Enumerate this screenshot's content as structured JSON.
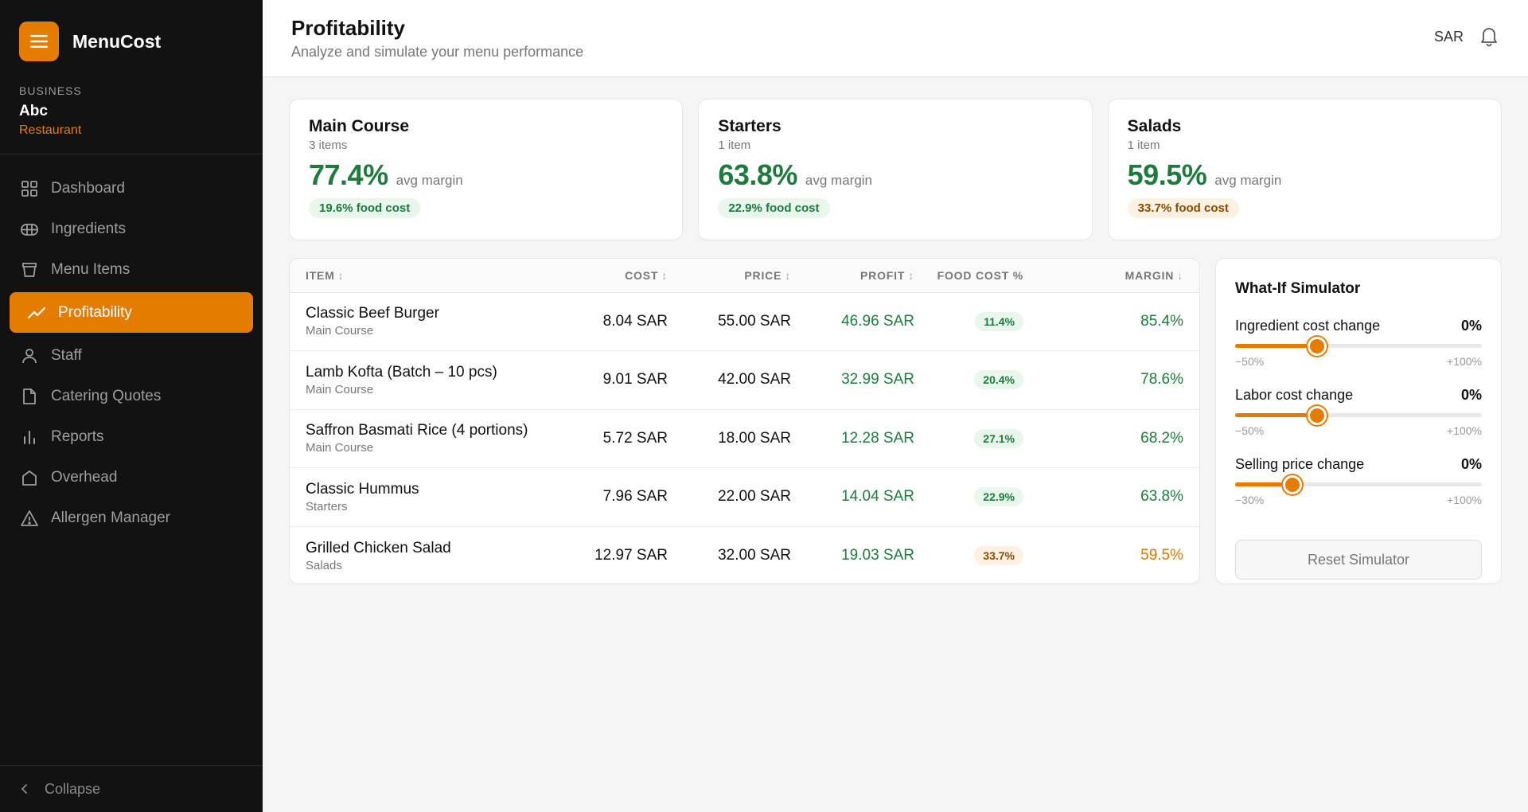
{
  "brand": {
    "name": "MenuCost",
    "icon": "hamburger-menu-icon"
  },
  "business": {
    "caption": "BUSINESS",
    "name": "Abc",
    "type": "Restaurant"
  },
  "nav": [
    {
      "label": "Dashboard",
      "icon": "dashboard-icon"
    },
    {
      "label": "Ingredients",
      "icon": "ingredients-icon"
    },
    {
      "label": "Menu Items",
      "icon": "menu-items-icon"
    },
    {
      "label": "Profitability",
      "icon": "trend-up-icon",
      "active": true
    },
    {
      "label": "Staff",
      "icon": "user-icon"
    },
    {
      "label": "Catering Quotes",
      "icon": "document-icon"
    },
    {
      "label": "Reports",
      "icon": "bar-chart-icon"
    },
    {
      "label": "Overhead",
      "icon": "home-icon"
    },
    {
      "label": "Allergen Manager",
      "icon": "warning-icon"
    }
  ],
  "collapse_label": "Collapse",
  "header": {
    "title": "Profitability",
    "subtitle": "Analyze and simulate your menu performance",
    "currency": "SAR"
  },
  "categories": [
    {
      "name": "Main Course",
      "count": "3 items",
      "margin": "77.4%",
      "margin_label": "avg margin",
      "food_cost": "19.6% food cost",
      "status": "green"
    },
    {
      "name": "Starters",
      "count": "1 item",
      "margin": "63.8%",
      "margin_label": "avg margin",
      "food_cost": "22.9% food cost",
      "status": "green"
    },
    {
      "name": "Salads",
      "count": "1 item",
      "margin": "59.5%",
      "margin_label": "avg margin",
      "food_cost": "33.7% food cost",
      "status": "amber"
    }
  ],
  "table": {
    "columns": {
      "item": "ITEM",
      "cost": "COST",
      "price": "PRICE",
      "profit": "PROFIT",
      "food_cost": "FOOD COST %",
      "margin": "MARGIN"
    },
    "sort_neutral": "↕",
    "sort_desc": "↓",
    "rows": [
      {
        "name": "Classic Beef Burger",
        "category": "Main Course",
        "cost": "8.04 SAR",
        "price": "55.00 SAR",
        "profit": "46.96 SAR",
        "food_cost": "11.4%",
        "margin": "85.4%",
        "status": "green"
      },
      {
        "name": "Lamb Kofta (Batch – 10 pcs)",
        "category": "Main Course",
        "cost": "9.01 SAR",
        "price": "42.00 SAR",
        "profit": "32.99 SAR",
        "food_cost": "20.4%",
        "margin": "78.6%",
        "status": "green"
      },
      {
        "name": "Saffron Basmati Rice (4 portions)",
        "category": "Main Course",
        "cost": "5.72 SAR",
        "price": "18.00 SAR",
        "profit": "12.28 SAR",
        "food_cost": "27.1%",
        "margin": "68.2%",
        "status": "green"
      },
      {
        "name": "Classic Hummus",
        "category": "Starters",
        "cost": "7.96 SAR",
        "price": "22.00 SAR",
        "profit": "14.04 SAR",
        "food_cost": "22.9%",
        "margin": "63.8%",
        "status": "green"
      },
      {
        "name": "Grilled Chicken Salad",
        "category": "Salads",
        "cost": "12.97 SAR",
        "price": "32.00 SAR",
        "profit": "19.03 SAR",
        "food_cost": "33.7%",
        "margin": "59.5%",
        "status": "amber"
      }
    ]
  },
  "simulator": {
    "title": "What-If Simulator",
    "sliders": [
      {
        "label": "Ingredient cost change",
        "value": "0%",
        "current": 0,
        "min": -50,
        "max": 100,
        "min_label": "−50%",
        "max_label": "+100%"
      },
      {
        "label": "Labor cost change",
        "value": "0%",
        "current": 0,
        "min": -50,
        "max": 100,
        "min_label": "−50%",
        "max_label": "+100%"
      },
      {
        "label": "Selling price change",
        "value": "0%",
        "current": 0,
        "min": -30,
        "max": 100,
        "min_label": "−30%",
        "max_label": "+100%"
      }
    ],
    "reset_label": "Reset Simulator"
  },
  "colors": {
    "accent": "#e47c00",
    "positive": "#1e7b3d",
    "warning": "#d77a00",
    "sidebar_bg": "#121212"
  }
}
